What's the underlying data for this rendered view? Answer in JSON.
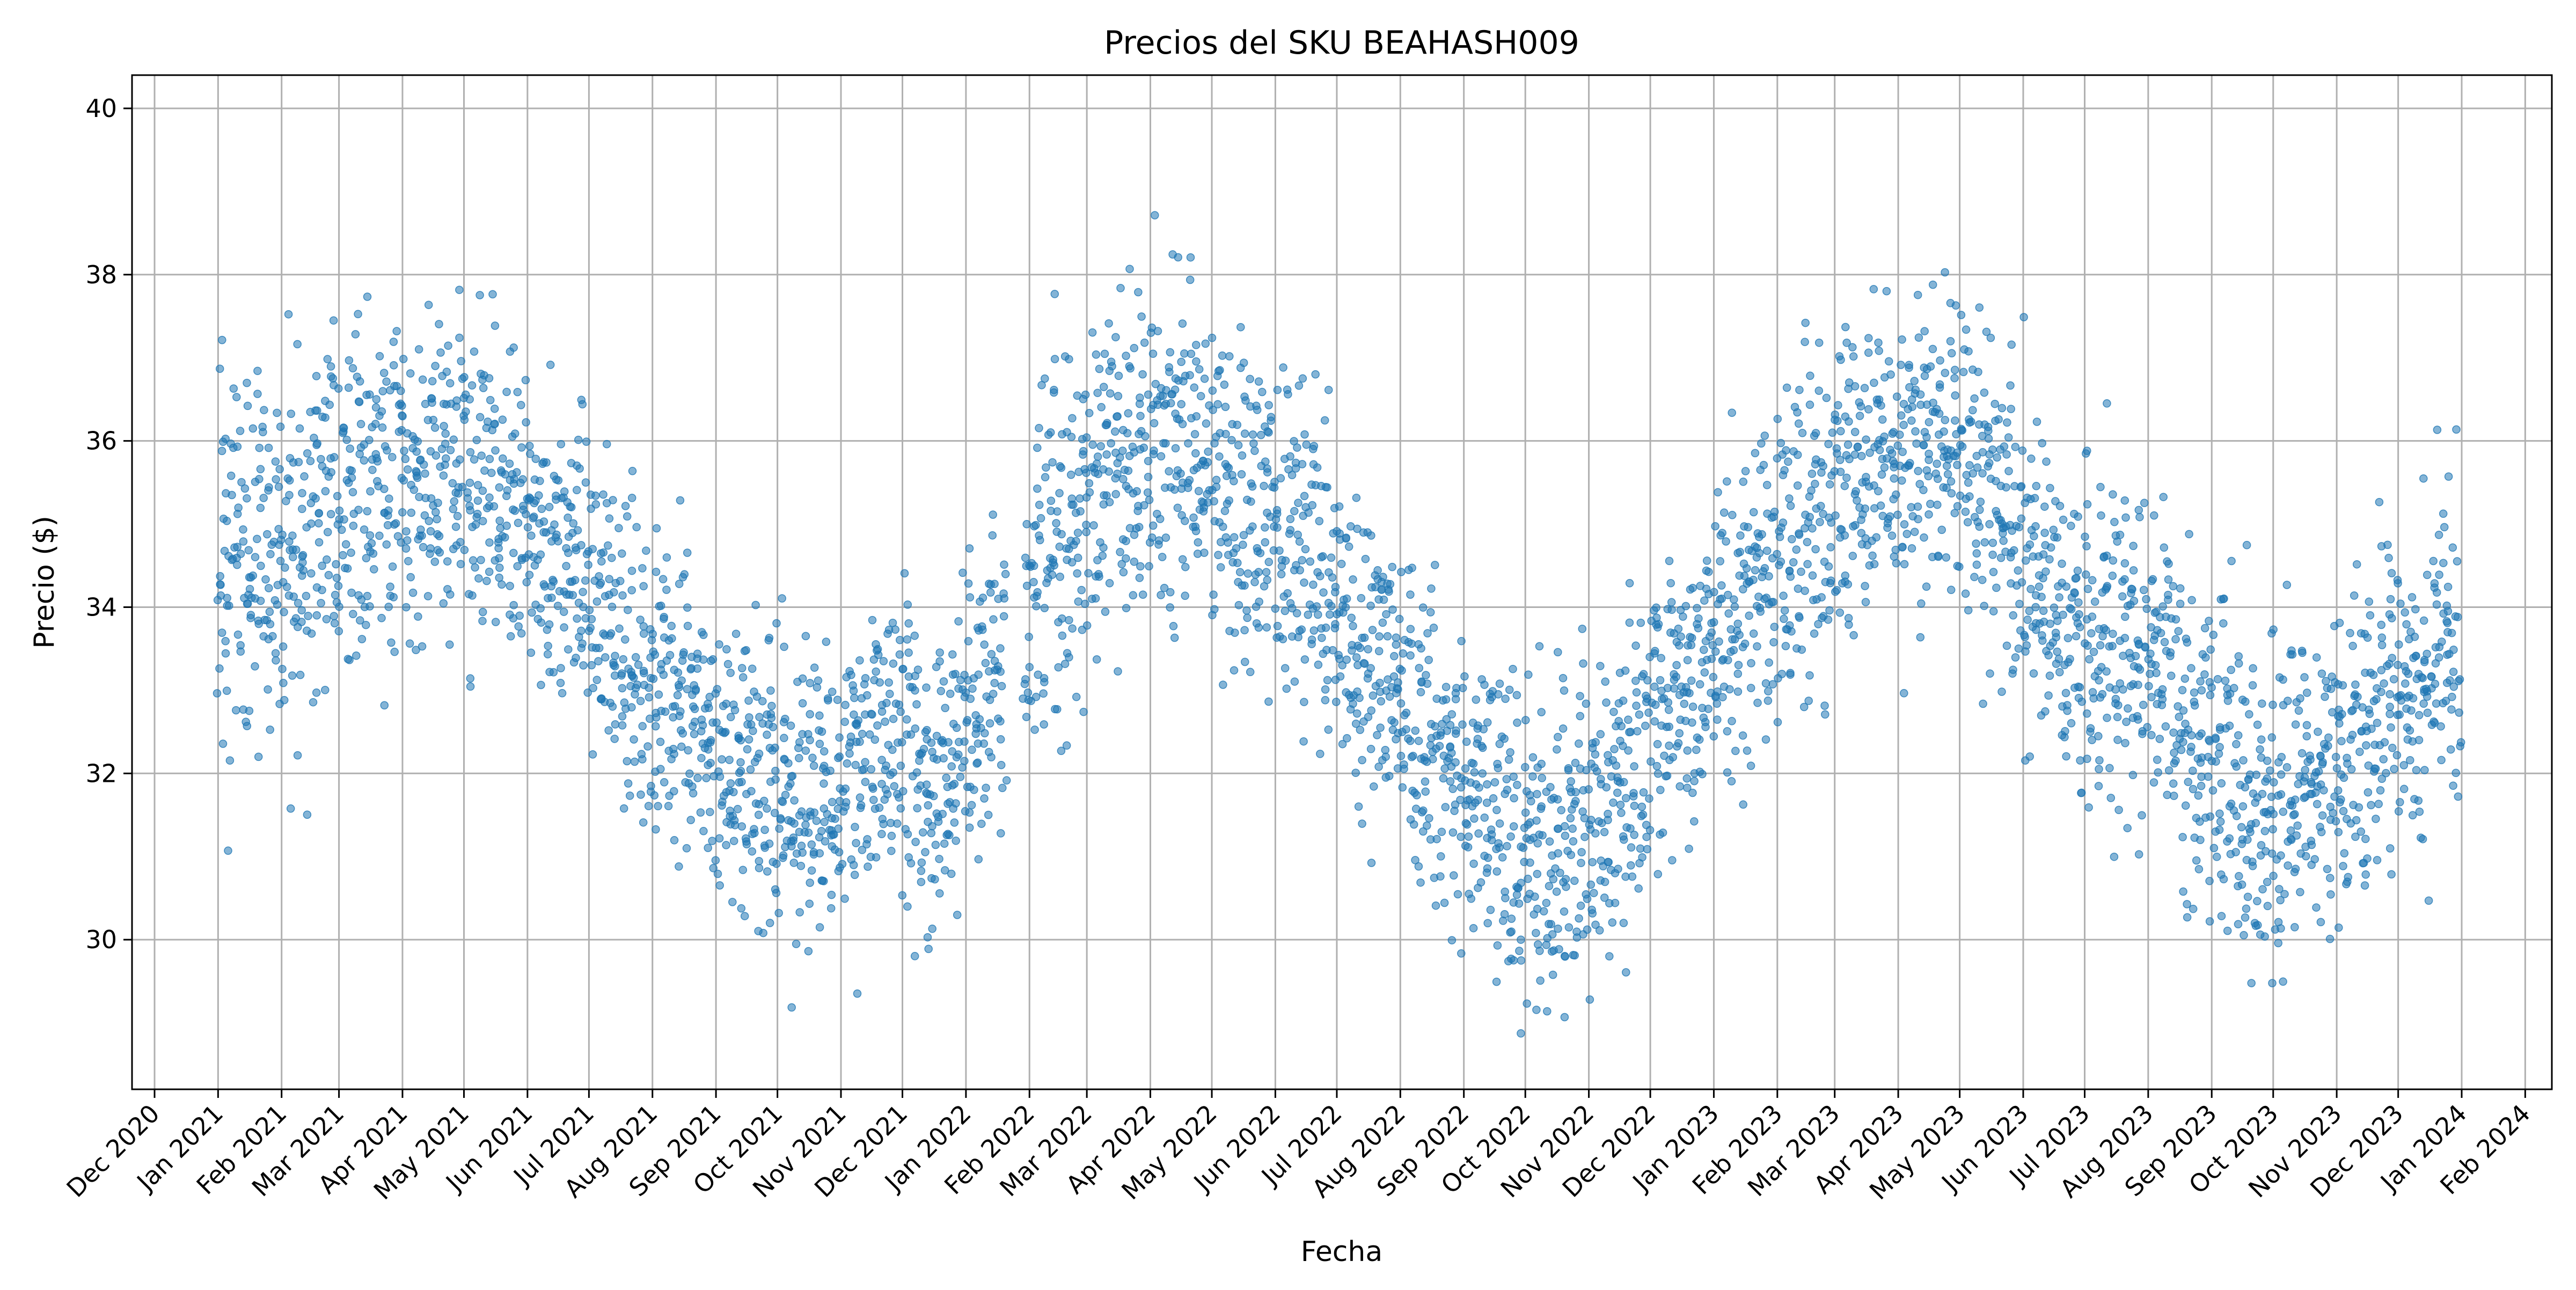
{
  "chart_data": {
    "type": "scatter",
    "title": "Precios del SKU BEAHASH009",
    "xlabel": "Fecha",
    "ylabel": "Precio ($)",
    "xlim": [
      "2020-11-20",
      "2024-02-14"
    ],
    "ylim": [
      28.2,
      40.4
    ],
    "x_tick_labels": [
      "Dec 2020",
      "Jan 2021",
      "Feb 2021",
      "Mar 2021",
      "Apr 2021",
      "May 2021",
      "Jun 2021",
      "Jul 2021",
      "Aug 2021",
      "Sep 2021",
      "Oct 2021",
      "Nov 2021",
      "Dec 2021",
      "Jan 2022",
      "Feb 2022",
      "Mar 2022",
      "Apr 2022",
      "May 2022",
      "Jun 2022",
      "Jul 2022",
      "Aug 2022",
      "Sep 2022",
      "Oct 2022",
      "Nov 2022",
      "Dec 2022",
      "Jan 2023",
      "Feb 2023",
      "Mar 2023",
      "Apr 2023",
      "May 2023",
      "Jun 2023",
      "Jul 2023",
      "Aug 2023",
      "Sep 2023",
      "Oct 2023",
      "Nov 2023",
      "Dec 2023",
      "Jan 2024",
      "Feb 2024"
    ],
    "y_ticks": [
      30,
      32,
      34,
      36,
      38,
      40
    ],
    "grid": true,
    "colors": {
      "marker": "#1f77b4",
      "grid": "#b0b0b0"
    },
    "series": [
      {
        "x": [
          "2021-01-01",
          "2021-01-15",
          "2021-02-01",
          "2021-02-15",
          "2021-03-01",
          "2021-03-15",
          "2021-04-01",
          "2021-04-15",
          "2021-05-01",
          "2021-05-15",
          "2021-06-01",
          "2021-06-15",
          "2021-07-01",
          "2021-07-15",
          "2021-08-01",
          "2021-08-15",
          "2021-09-01",
          "2021-09-15",
          "2021-10-01",
          "2021-10-15",
          "2021-11-01",
          "2021-11-15",
          "2021-12-01",
          "2021-12-15",
          "2022-01-01",
          "2022-01-15",
          "2022-02-01",
          "2022-02-15",
          "2022-03-01",
          "2022-03-15",
          "2022-04-01",
          "2022-04-15",
          "2022-05-01",
          "2022-05-15",
          "2022-06-01",
          "2022-06-15",
          "2022-07-01",
          "2022-07-15",
          "2022-08-01",
          "2022-08-15",
          "2022-09-01",
          "2022-09-15",
          "2022-10-01",
          "2022-10-15",
          "2022-11-01",
          "2022-11-15",
          "2022-12-01",
          "2022-12-15",
          "2023-01-01",
          "2023-01-15",
          "2023-02-01",
          "2023-02-15",
          "2023-03-01",
          "2023-03-15",
          "2023-04-01",
          "2023-04-15",
          "2023-05-01",
          "2023-05-15",
          "2023-06-01",
          "2023-06-15",
          "2023-07-01",
          "2023-07-15",
          "2023-08-01",
          "2023-08-15",
          "2023-09-01",
          "2023-09-15",
          "2023-10-01",
          "2023-10-15",
          "2023-11-01",
          "2023-11-15",
          "2023-12-01",
          "2023-12-15",
          "2023-12-31"
        ],
        "y": [
          34.3,
          34.6,
          34.7,
          35.0,
          35.2,
          35.4,
          35.6,
          35.7,
          35.6,
          35.4,
          35.0,
          34.6,
          34.1,
          33.6,
          33.1,
          32.6,
          32.2,
          31.9,
          31.7,
          31.6,
          31.8,
          32.1,
          32.6,
          31.5,
          32.4,
          33.3,
          34.2,
          34.9,
          35.4,
          35.8,
          36.0,
          36.1,
          35.8,
          35.4,
          35.0,
          34.5,
          34.0,
          33.5,
          32.9,
          32.3,
          31.8,
          31.4,
          31.1,
          31.0,
          31.3,
          31.8,
          32.4,
          33.0,
          33.6,
          34.1,
          34.6,
          35.0,
          35.3,
          35.6,
          35.8,
          35.9,
          35.7,
          35.2,
          34.6,
          34.0,
          33.8,
          33.6,
          33.2,
          32.7,
          32.1,
          31.6,
          31.6,
          31.8,
          32.0,
          32.3,
          32.7,
          33.2,
          33.4
        ],
        "spread": [
          4.4,
          4.3,
          4.2,
          4.0,
          3.8,
          3.6,
          3.4,
          3.4,
          3.5,
          3.5,
          3.5,
          3.4,
          3.3,
          3.2,
          3.1,
          3.0,
          2.9,
          3.0,
          3.1,
          3.2,
          3.3,
          3.4,
          3.5,
          3.0,
          3.0,
          3.5,
          3.8,
          3.8,
          3.8,
          3.6,
          3.5,
          3.5,
          3.5,
          3.4,
          3.4,
          3.3,
          3.2,
          3.1,
          3.1,
          3.1,
          3.1,
          3.2,
          3.3,
          3.3,
          3.3,
          3.3,
          3.3,
          3.3,
          3.3,
          3.4,
          3.5,
          3.5,
          3.4,
          3.3,
          3.2,
          3.2,
          3.3,
          3.4,
          3.4,
          3.4,
          3.4,
          3.4,
          3.4,
          3.5,
          3.6,
          3.6,
          3.5,
          3.5,
          3.5,
          3.5,
          3.4,
          3.3,
          3.3
        ]
      }
    ]
  }
}
